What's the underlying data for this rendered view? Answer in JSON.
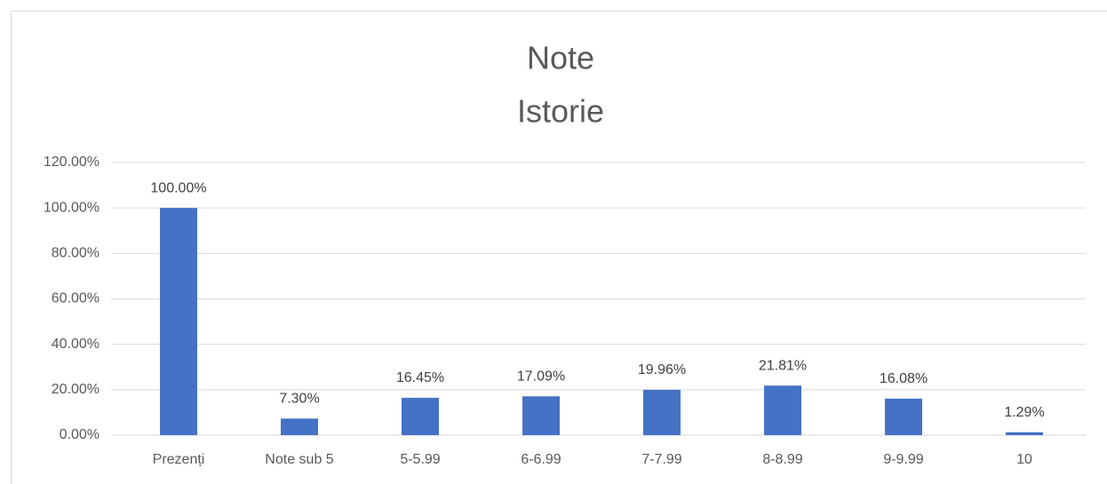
{
  "chart_data": {
    "type": "bar",
    "title": "Note",
    "subtitle": "Istorie",
    "categories": [
      "Prezenți",
      "Note sub 5",
      "5-5.99",
      "6-6.99",
      "7-7.99",
      "8-8.99",
      "9-9.99",
      "10"
    ],
    "values": [
      100,
      7.3,
      16.45,
      17.09,
      19.96,
      21.81,
      16.08,
      1.29
    ],
    "value_labels": [
      "100.00%",
      "7.30%",
      "16.45%",
      "17.09%",
      "19.96%",
      "21.81%",
      "16.08%",
      "1.29%"
    ],
    "color": "#4472c4",
    "ylim": [
      0,
      120
    ],
    "yticks": [
      {
        "value": 0,
        "label": "0.00%"
      },
      {
        "value": 20,
        "label": "20.00%"
      },
      {
        "value": 40,
        "label": "40.00%"
      },
      {
        "value": 60,
        "label": "60.00%"
      },
      {
        "value": 80,
        "label": "80.00%"
      },
      {
        "value": 100,
        "label": "100.00%"
      },
      {
        "value": 120,
        "label": "120.00%"
      }
    ],
    "grid": true
  }
}
